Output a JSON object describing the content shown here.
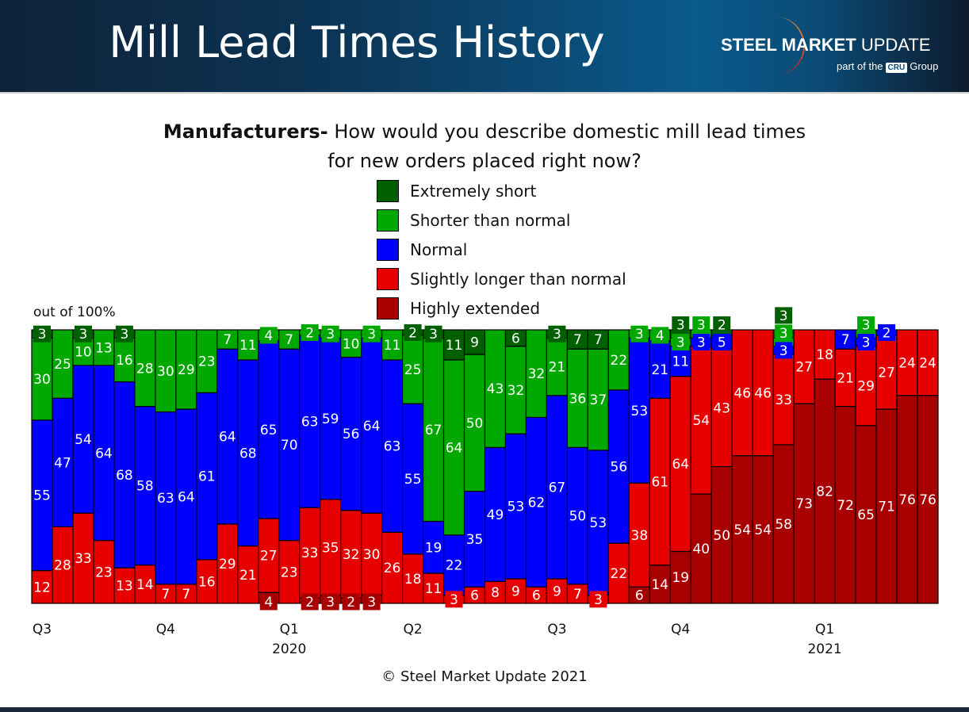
{
  "header": {
    "title": "Mill Lead Times History",
    "logo_main_bold": "STEEL MARKET",
    "logo_main_light": "UPDATE",
    "logo_sub_pre": "part of the",
    "logo_sub_badge": "CRU",
    "logo_sub_post": "Group"
  },
  "copyright": "© Steel Market Update 2021",
  "chart_data": {
    "type": "bar",
    "stacked": true,
    "title_bold": "Manufacturers-",
    "title_line1": "How would you describe domestic mill lead times",
    "title_line2": "for new orders placed right now?",
    "ylabel": "out of 100%",
    "ylim": [
      0,
      100
    ],
    "legend_position": "top-center",
    "x_ticks": [
      {
        "bar": 1,
        "label": "Q3",
        "year": ""
      },
      {
        "bar": 7,
        "label": "Q4",
        "year": ""
      },
      {
        "bar": 13,
        "label": "Q1",
        "year": "2020"
      },
      {
        "bar": 19,
        "label": "Q2",
        "year": ""
      },
      {
        "bar": 26,
        "label": "Q3",
        "year": ""
      },
      {
        "bar": 32,
        "label": "Q4",
        "year": ""
      },
      {
        "bar": 39,
        "label": "Q1",
        "year": "2021"
      }
    ],
    "series": [
      {
        "name": "Highly extended",
        "color": "#a80000",
        "values": [
          0,
          0,
          0,
          0,
          0,
          0,
          0,
          0,
          0,
          0,
          0,
          4,
          0,
          2,
          3,
          2,
          3,
          0,
          0,
          0,
          0,
          0,
          0,
          0,
          0,
          0,
          0,
          0,
          0,
          6,
          14,
          19,
          40,
          50,
          54,
          54,
          58,
          73,
          82,
          72,
          65,
          71,
          76,
          76
        ]
      },
      {
        "name": "Slightly longer than normal",
        "color": "#e60000",
        "values": [
          12,
          28,
          33,
          23,
          13,
          14,
          7,
          7,
          16,
          29,
          21,
          27,
          23,
          33,
          35,
          32,
          30,
          26,
          18,
          11,
          3,
          6,
          8,
          9,
          6,
          9,
          7,
          3,
          22,
          38,
          61,
          64,
          54,
          43,
          46,
          46,
          33,
          27,
          18,
          21,
          29,
          27,
          24,
          24
        ]
      },
      {
        "name": "Normal",
        "color": "#0000ff",
        "values": [
          55,
          47,
          54,
          64,
          68,
          58,
          63,
          64,
          61,
          64,
          68,
          65,
          70,
          63,
          59,
          56,
          64,
          63,
          55,
          19,
          22,
          35,
          49,
          53,
          62,
          67,
          50,
          53,
          56,
          53,
          21,
          11,
          3,
          5,
          0,
          0,
          3,
          0,
          0,
          7,
          3,
          2,
          0,
          0
        ]
      },
      {
        "name": "Shorter than normal",
        "color": "#00a800",
        "values": [
          30,
          25,
          10,
          13,
          16,
          28,
          30,
          29,
          23,
          7,
          11,
          4,
          7,
          2,
          3,
          10,
          3,
          11,
          25,
          67,
          64,
          50,
          43,
          32,
          32,
          21,
          36,
          37,
          22,
          3,
          4,
          3,
          3,
          0,
          0,
          0,
          3,
          0,
          0,
          0,
          3,
          0,
          0,
          0
        ]
      },
      {
        "name": "Extremely short",
        "color": "#006000",
        "values": [
          3,
          0,
          3,
          0,
          3,
          0,
          0,
          0,
          0,
          0,
          0,
          0,
          0,
          0,
          0,
          0,
          0,
          0,
          2,
          3,
          11,
          9,
          0,
          6,
          0,
          3,
          7,
          7,
          0,
          0,
          0,
          3,
          0,
          2,
          0,
          0,
          3,
          0,
          0,
          0,
          0,
          0,
          0,
          0
        ]
      }
    ]
  }
}
